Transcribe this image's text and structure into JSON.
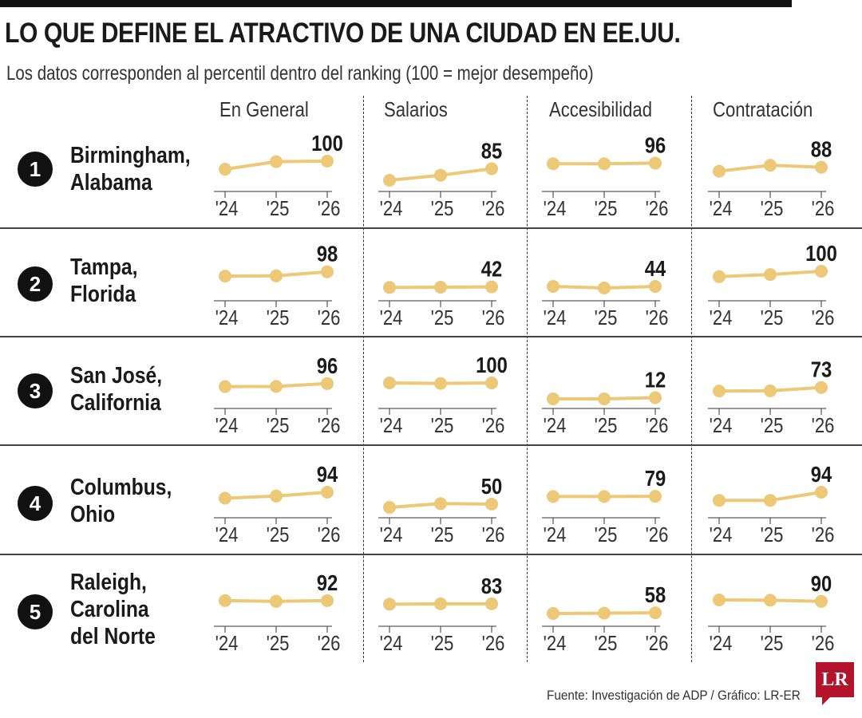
{
  "title": "LO QUE DEFINE EL ATRACTIVO DE UNA CIUDAD EN EE.UU.",
  "subtitle": "Los datos corresponden al percentil dentro del ranking (100 = mejor desempeño)",
  "source": "Fuente: Investigación de ADP / Gráfico: LR-ER",
  "logo": "LR",
  "colors": {
    "line": "#ecc877",
    "dot": "#ecc877",
    "axis": "#333333",
    "text": "#1a1a1a",
    "rank_badge": "#111111",
    "logo": "#b3132b"
  },
  "chart_data": {
    "type": "line",
    "x": [
      "'24",
      "'25",
      "'26"
    ],
    "metrics": [
      "En General",
      "Salarios",
      "Accesibilidad",
      "Contratación"
    ],
    "rows": [
      {
        "rank": "1",
        "city": [
          "Birmingham,",
          "Alabama"
        ],
        "series": [
          {
            "name": "En General",
            "values": [
              84,
              99,
              100
            ],
            "label": "100"
          },
          {
            "name": "Salarios",
            "values": [
              62,
              72,
              85
            ],
            "label": "85"
          },
          {
            "name": "Accesibilidad",
            "values": [
              95,
              95,
              96
            ],
            "label": "96"
          },
          {
            "name": "Contratación",
            "values": [
              80,
              92,
              88
            ],
            "label": "88"
          }
        ]
      },
      {
        "rank": "2",
        "city": [
          "Tampa,",
          "Florida"
        ],
        "series": [
          {
            "name": "En General",
            "values": [
              82,
              83,
              98
            ],
            "label": "98"
          },
          {
            "name": "Salarios",
            "values": [
              40,
              41,
              42
            ],
            "label": "42"
          },
          {
            "name": "Accesibilidad",
            "values": [
              44,
              38,
              44
            ],
            "label": "44"
          },
          {
            "name": "Contratación",
            "values": [
              80,
              88,
              100
            ],
            "label": "100"
          }
        ]
      },
      {
        "rank": "3",
        "city": [
          "San José,",
          "California"
        ],
        "series": [
          {
            "name": "En General",
            "values": [
              78,
              79,
              96
            ],
            "label": "96"
          },
          {
            "name": "Salarios",
            "values": [
              100,
              97,
              100
            ],
            "label": "100"
          },
          {
            "name": "Accesibilidad",
            "values": [
              5,
              5,
              12
            ],
            "label": "12"
          },
          {
            "name": "Contratación",
            "values": [
              52,
              53,
              73
            ],
            "label": "73"
          }
        ]
      },
      {
        "rank": "4",
        "city": [
          "Columbus,",
          "Ohio"
        ],
        "series": [
          {
            "name": "En General",
            "values": [
              72,
              80,
              94
            ],
            "label": "94"
          },
          {
            "name": "Salarios",
            "values": [
              38,
              52,
              50
            ],
            "label": "50"
          },
          {
            "name": "Accesibilidad",
            "values": [
              78,
              78,
              79
            ],
            "label": "79"
          },
          {
            "name": "Contratación",
            "values": [
              64,
              64,
              94
            ],
            "label": "94"
          }
        ]
      },
      {
        "rank": "5",
        "city": [
          "Raleigh,",
          "Carolina",
          "del Norte"
        ],
        "series": [
          {
            "name": "En General",
            "values": [
              92,
              90,
              92
            ],
            "label": "92"
          },
          {
            "name": "Salarios",
            "values": [
              82,
              83,
              83
            ],
            "label": "83"
          },
          {
            "name": "Accesibilidad",
            "values": [
              56,
              57,
              58
            ],
            "label": "58"
          },
          {
            "name": "Contratación",
            "values": [
              94,
              93,
              90
            ],
            "label": "90"
          }
        ]
      }
    ]
  }
}
